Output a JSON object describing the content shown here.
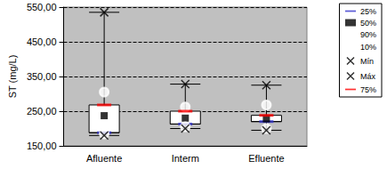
{
  "chart_data": {
    "type": "box",
    "y_label": "ST (mg/L)",
    "categories": [
      "Afluente",
      "Interm",
      "Efluente"
    ],
    "series": [
      {
        "name": "25%",
        "color": "#3333cc",
        "marker": "dash",
        "values": [
          188,
          213,
          220
        ]
      },
      {
        "name": "50%",
        "color": "#000000",
        "marker": "square",
        "values": [
          237,
          230,
          228
        ]
      },
      {
        "name": "90%",
        "color": "#339933",
        "marker": "circle",
        "values": [
          305,
          262,
          268
        ]
      },
      {
        "name": "10%",
        "color": "#cc6699",
        "marker": "circle",
        "values": [
          185,
          205,
          200
        ]
      },
      {
        "name": "Mín",
        "color": "#000000",
        "marker": "x",
        "values": [
          180,
          200,
          195
        ]
      },
      {
        "name": "Máx",
        "color": "#000000",
        "marker": "x",
        "values": [
          535,
          328,
          325
        ]
      },
      {
        "name": "75%",
        "color": "#ff0000",
        "marker": "dash",
        "values": [
          268,
          250,
          238
        ]
      }
    ],
    "ylim": [
      150,
      550
    ],
    "yticks": [
      {
        "value": 150,
        "label": "150,00"
      },
      {
        "value": 250,
        "label": "250,00"
      },
      {
        "value": 350,
        "label": "350,00"
      },
      {
        "value": 450,
        "label": "450,00"
      },
      {
        "value": 550,
        "label": "550,00"
      }
    ],
    "grid": true,
    "legend": "right"
  }
}
